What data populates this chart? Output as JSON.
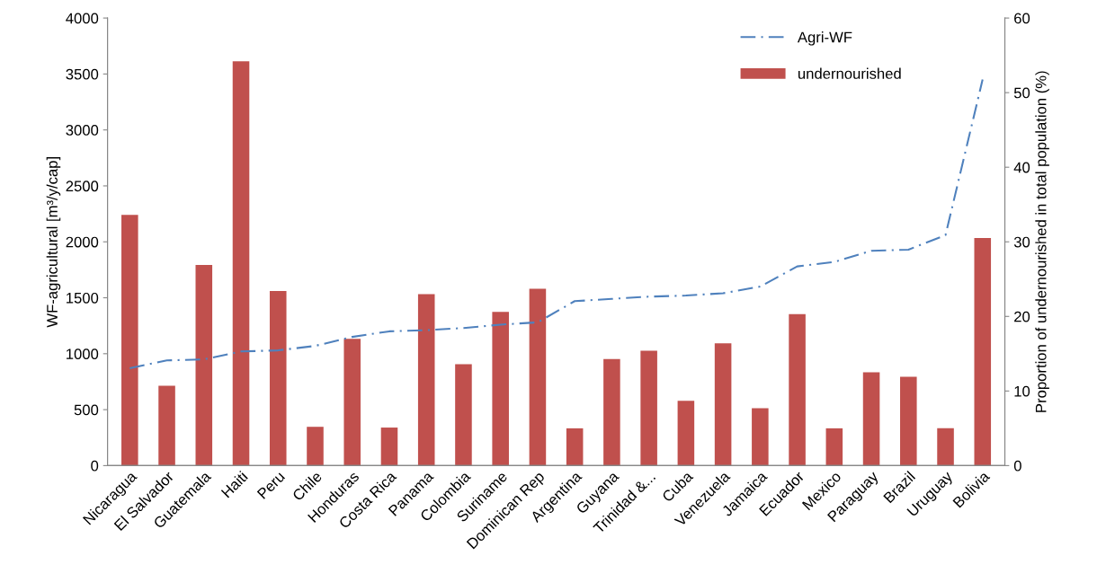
{
  "chart_data": {
    "type": "bar",
    "categories": [
      "Nicaragua",
      "El Salvador",
      "Guatemala",
      "Haiti",
      "Peru",
      "Chile",
      "Honduras",
      "Costa Rica",
      "Panama",
      "Colombia",
      "Suriname",
      "Dominican Rep",
      "Argentina",
      "Guyana",
      "Trinidad &...",
      "Cuba",
      "Venezuela",
      "Jamaica",
      "Ecuador",
      "Mexico",
      "Paraguay",
      "Brazil",
      "Uruguay",
      "Bolivia"
    ],
    "series": [
      {
        "name": "Agri-WF",
        "type": "line",
        "color": "#4f81bd",
        "line_style": "dashed",
        "values": [
          870,
          940,
          950,
          1020,
          1030,
          1070,
          1150,
          1200,
          1210,
          1230,
          1260,
          1280,
          1470,
          1490,
          1510,
          1520,
          1540,
          1600,
          1780,
          1820,
          1920,
          1930,
          2060,
          3450
        ]
      },
      {
        "name": "undernourished",
        "axis": "y2",
        "color": "#c0504d",
        "values": [
          33.6,
          10.7,
          26.9,
          54.2,
          23.4,
          5.2,
          17,
          5.1,
          23,
          13.6,
          20.6,
          23.7,
          5,
          14.3,
          15.4,
          8.7,
          16.4,
          7.7,
          20.3,
          5,
          12.5,
          11.9,
          5,
          30.5
        ]
      }
    ],
    "ylabel": "WF-agricultural [m³/y/cap]",
    "y2label": "Proportion of undernourished in total population (%)",
    "ylim": [
      0,
      4000
    ],
    "yticks": [
      0,
      500,
      1000,
      1500,
      2000,
      2500,
      3000,
      3500,
      4000
    ],
    "y2lim": [
      0,
      60
    ],
    "y2ticks": [
      0,
      10,
      20,
      30,
      40,
      50,
      60
    ],
    "legend": "top right"
  }
}
